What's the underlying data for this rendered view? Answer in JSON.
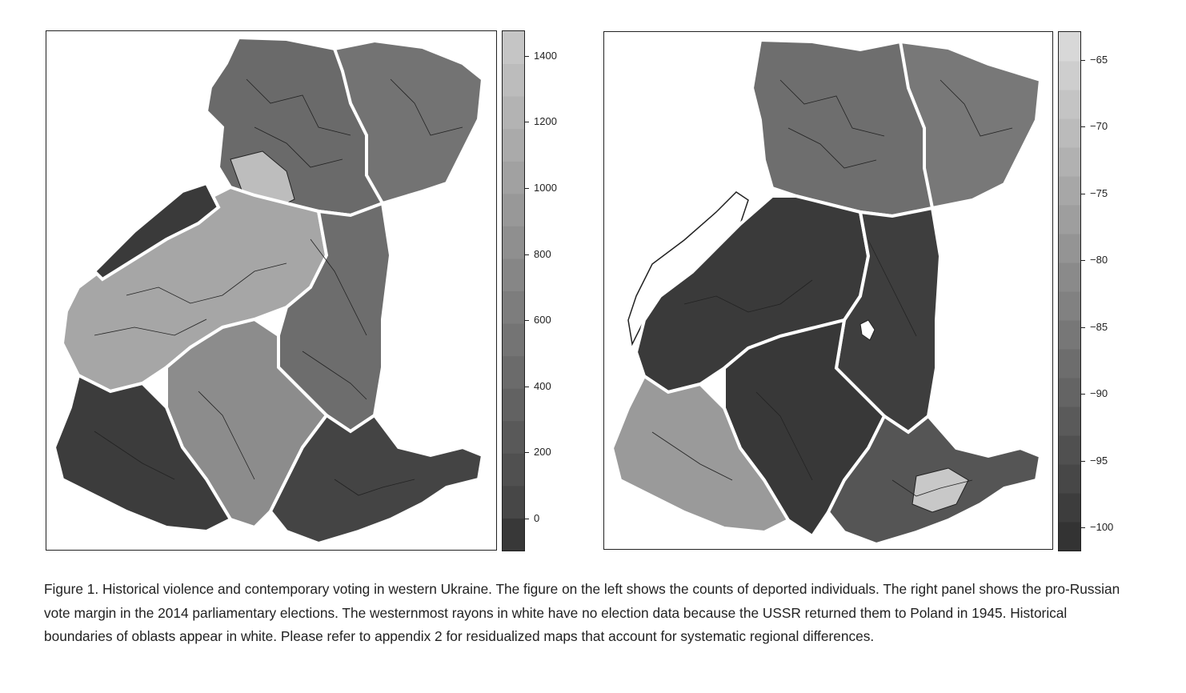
{
  "left_panel": {
    "colorbar_ticks": [
      "0",
      "200",
      "400",
      "600",
      "800",
      "1000",
      "1200",
      "1400"
    ],
    "colorbar_shades": [
      "#383838",
      "#474747",
      "#505050",
      "#595959",
      "#626262",
      "#6b6b6b",
      "#747474",
      "#7d7d7d",
      "#868686",
      "#8f8f8f",
      "#989898",
      "#a1a1a1",
      "#aaaaaa",
      "#b3b3b3",
      "#bcbcbc",
      "#c5c5c5"
    ]
  },
  "right_panel": {
    "colorbar_ticks": [
      "−100",
      "−95",
      "−90",
      "−85",
      "−80",
      "−75",
      "−70",
      "−65"
    ],
    "colorbar_shades": [
      "#333333",
      "#3d3d3d",
      "#474747",
      "#505050",
      "#5a5a5a",
      "#646464",
      "#6d6d6d",
      "#777777",
      "#818181",
      "#8a8a8a",
      "#949494",
      "#9e9e9e",
      "#a7a7a7",
      "#b1b1b1",
      "#bbbbbb",
      "#c4c4c4",
      "#cecece",
      "#d8d8d8"
    ]
  },
  "caption": "Figure 1. Historical violence and contemporary voting in western Ukraine. The figure on the left shows the counts of deported individuals. The right panel shows the pro-Russian vote margin in the 2014 parliamentary elections. The westernmost rayons in white have no election data because the USSR returned them to Poland in 1945. Historical boundaries of oblasts appear in white. Please refer to appendix 2 for residualized maps that account for systematic regional differences."
}
